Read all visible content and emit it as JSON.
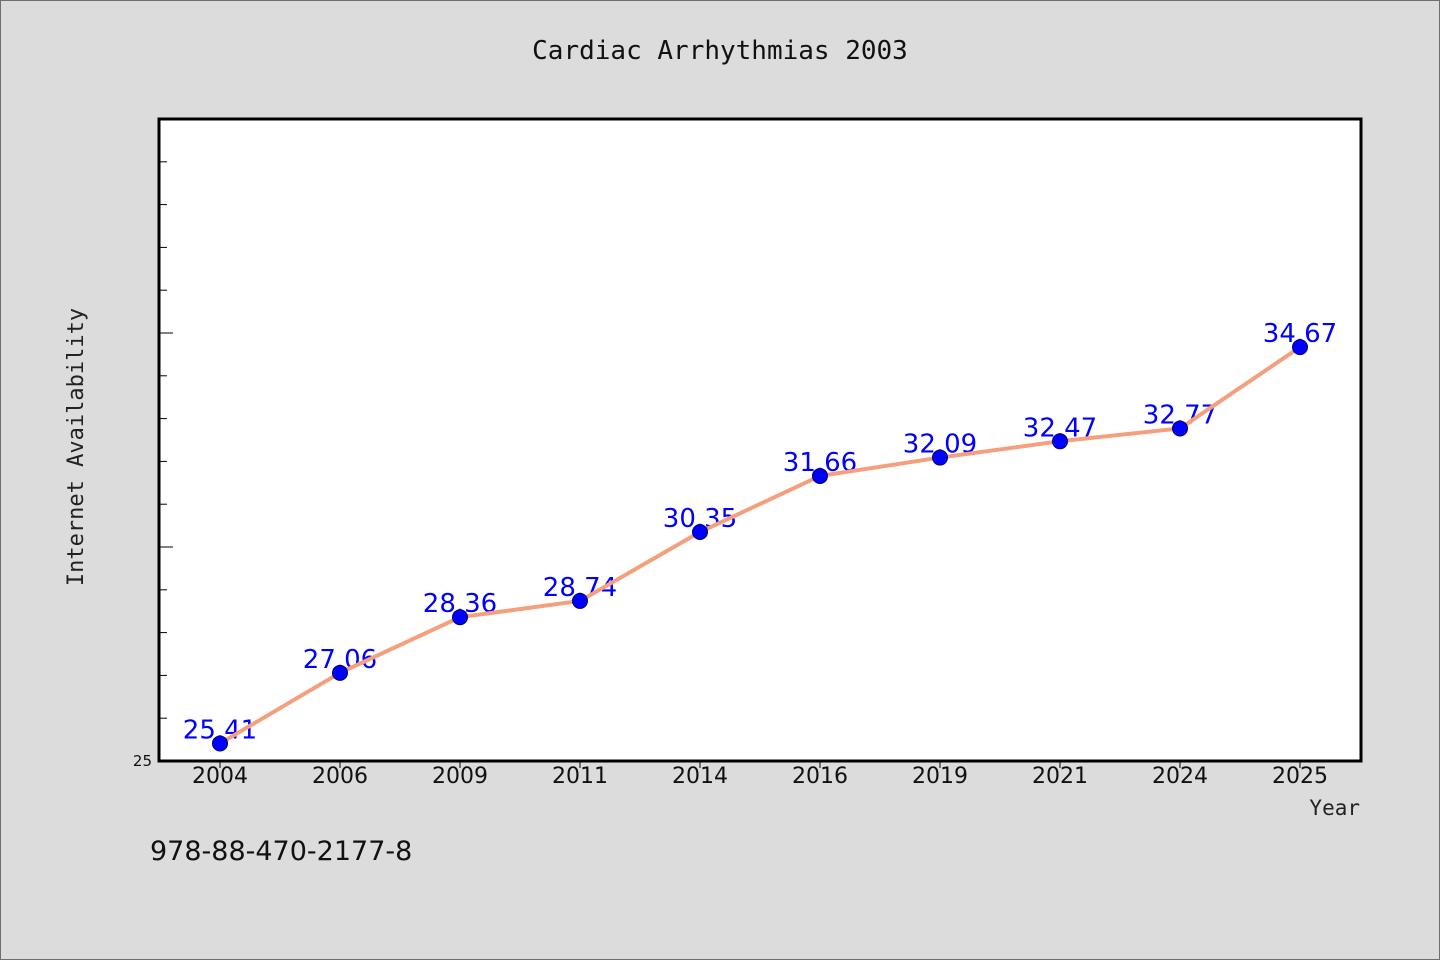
{
  "chart_data": {
    "type": "line",
    "title": "Cardiac Arrhythmias 2003",
    "xlabel": "Year",
    "ylabel": "Internet Availability",
    "categories": [
      "2004",
      "2006",
      "2009",
      "2011",
      "2014",
      "2016",
      "2019",
      "2021",
      "2024",
      "2025"
    ],
    "values": [
      25.41,
      27.06,
      28.36,
      28.74,
      30.35,
      31.66,
      32.09,
      32.47,
      32.77,
      34.67
    ],
    "ylim": [
      25,
      40
    ],
    "y_tick_labels": [
      "25"
    ],
    "y_major_tick_step": 5,
    "y_minor_tick_step": 1,
    "data_labels": true,
    "grid": false,
    "legend": false,
    "colors": {
      "background": "#dcdcdc",
      "plot_background": "#ffffff",
      "line": "#f4a07e",
      "marker": "#0000ff",
      "marker_edge": "#00006e",
      "label": "#0000ff"
    }
  },
  "footer": {
    "isbn": "978-88-470-2177-8"
  }
}
